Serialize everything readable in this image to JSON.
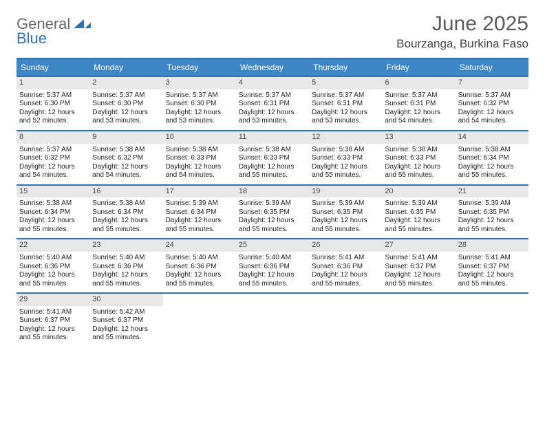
{
  "brand": {
    "word1": "General",
    "word2": "Blue",
    "color_general": "#6a6a6a",
    "color_blue": "#2f73b6"
  },
  "header": {
    "month_title": "June 2025",
    "location": "Bourzanga, Burkina Faso"
  },
  "colors": {
    "header_bar": "#3d87c7",
    "rule": "#2f73b6",
    "daynum_bg": "#e8e8e8",
    "text": "#222222",
    "bg": "#ffffff"
  },
  "typography": {
    "body_pt": 10,
    "dow_pt": 12,
    "title_pt": 30,
    "location_pt": 17
  },
  "days_of_week": [
    "Sunday",
    "Monday",
    "Tuesday",
    "Wednesday",
    "Thursday",
    "Friday",
    "Saturday"
  ],
  "weeks": [
    [
      {
        "n": "1",
        "sunrise": "Sunrise: 5:37 AM",
        "sunset": "Sunset: 6:30 PM",
        "day": "Daylight: 12 hours and 52 minutes."
      },
      {
        "n": "2",
        "sunrise": "Sunrise: 5:37 AM",
        "sunset": "Sunset: 6:30 PM",
        "day": "Daylight: 12 hours and 53 minutes."
      },
      {
        "n": "3",
        "sunrise": "Sunrise: 5:37 AM",
        "sunset": "Sunset: 6:30 PM",
        "day": "Daylight: 12 hours and 53 minutes."
      },
      {
        "n": "4",
        "sunrise": "Sunrise: 5:37 AM",
        "sunset": "Sunset: 6:31 PM",
        "day": "Daylight: 12 hours and 53 minutes."
      },
      {
        "n": "5",
        "sunrise": "Sunrise: 5:37 AM",
        "sunset": "Sunset: 6:31 PM",
        "day": "Daylight: 12 hours and 53 minutes."
      },
      {
        "n": "6",
        "sunrise": "Sunrise: 5:37 AM",
        "sunset": "Sunset: 6:31 PM",
        "day": "Daylight: 12 hours and 54 minutes."
      },
      {
        "n": "7",
        "sunrise": "Sunrise: 5:37 AM",
        "sunset": "Sunset: 6:32 PM",
        "day": "Daylight: 12 hours and 54 minutes."
      }
    ],
    [
      {
        "n": "8",
        "sunrise": "Sunrise: 5:37 AM",
        "sunset": "Sunset: 6:32 PM",
        "day": "Daylight: 12 hours and 54 minutes."
      },
      {
        "n": "9",
        "sunrise": "Sunrise: 5:38 AM",
        "sunset": "Sunset: 6:32 PM",
        "day": "Daylight: 12 hours and 54 minutes."
      },
      {
        "n": "10",
        "sunrise": "Sunrise: 5:38 AM",
        "sunset": "Sunset: 6:33 PM",
        "day": "Daylight: 12 hours and 54 minutes."
      },
      {
        "n": "11",
        "sunrise": "Sunrise: 5:38 AM",
        "sunset": "Sunset: 6:33 PM",
        "day": "Daylight: 12 hours and 55 minutes."
      },
      {
        "n": "12",
        "sunrise": "Sunrise: 5:38 AM",
        "sunset": "Sunset: 6:33 PM",
        "day": "Daylight: 12 hours and 55 minutes."
      },
      {
        "n": "13",
        "sunrise": "Sunrise: 5:38 AM",
        "sunset": "Sunset: 6:33 PM",
        "day": "Daylight: 12 hours and 55 minutes."
      },
      {
        "n": "14",
        "sunrise": "Sunrise: 5:38 AM",
        "sunset": "Sunset: 6:34 PM",
        "day": "Daylight: 12 hours and 55 minutes."
      }
    ],
    [
      {
        "n": "15",
        "sunrise": "Sunrise: 5:38 AM",
        "sunset": "Sunset: 6:34 PM",
        "day": "Daylight: 12 hours and 55 minutes."
      },
      {
        "n": "16",
        "sunrise": "Sunrise: 5:38 AM",
        "sunset": "Sunset: 6:34 PM",
        "day": "Daylight: 12 hours and 55 minutes."
      },
      {
        "n": "17",
        "sunrise": "Sunrise: 5:39 AM",
        "sunset": "Sunset: 6:34 PM",
        "day": "Daylight: 12 hours and 55 minutes."
      },
      {
        "n": "18",
        "sunrise": "Sunrise: 5:39 AM",
        "sunset": "Sunset: 6:35 PM",
        "day": "Daylight: 12 hours and 55 minutes."
      },
      {
        "n": "19",
        "sunrise": "Sunrise: 5:39 AM",
        "sunset": "Sunset: 6:35 PM",
        "day": "Daylight: 12 hours and 55 minutes."
      },
      {
        "n": "20",
        "sunrise": "Sunrise: 5:39 AM",
        "sunset": "Sunset: 6:35 PM",
        "day": "Daylight: 12 hours and 55 minutes."
      },
      {
        "n": "21",
        "sunrise": "Sunrise: 5:39 AM",
        "sunset": "Sunset: 6:35 PM",
        "day": "Daylight: 12 hours and 55 minutes."
      }
    ],
    [
      {
        "n": "22",
        "sunrise": "Sunrise: 5:40 AM",
        "sunset": "Sunset: 6:36 PM",
        "day": "Daylight: 12 hours and 55 minutes."
      },
      {
        "n": "23",
        "sunrise": "Sunrise: 5:40 AM",
        "sunset": "Sunset: 6:36 PM",
        "day": "Daylight: 12 hours and 55 minutes."
      },
      {
        "n": "24",
        "sunrise": "Sunrise: 5:40 AM",
        "sunset": "Sunset: 6:36 PM",
        "day": "Daylight: 12 hours and 55 minutes."
      },
      {
        "n": "25",
        "sunrise": "Sunrise: 5:40 AM",
        "sunset": "Sunset: 6:36 PM",
        "day": "Daylight: 12 hours and 55 minutes."
      },
      {
        "n": "26",
        "sunrise": "Sunrise: 5:41 AM",
        "sunset": "Sunset: 6:36 PM",
        "day": "Daylight: 12 hours and 55 minutes."
      },
      {
        "n": "27",
        "sunrise": "Sunrise: 5:41 AM",
        "sunset": "Sunset: 6:37 PM",
        "day": "Daylight: 12 hours and 55 minutes."
      },
      {
        "n": "28",
        "sunrise": "Sunrise: 5:41 AM",
        "sunset": "Sunset: 6:37 PM",
        "day": "Daylight: 12 hours and 55 minutes."
      }
    ],
    [
      {
        "n": "29",
        "sunrise": "Sunrise: 5:41 AM",
        "sunset": "Sunset: 6:37 PM",
        "day": "Daylight: 12 hours and 55 minutes."
      },
      {
        "n": "30",
        "sunrise": "Sunrise: 5:42 AM",
        "sunset": "Sunset: 6:37 PM",
        "day": "Daylight: 12 hours and 55 minutes."
      },
      null,
      null,
      null,
      null,
      null
    ]
  ]
}
